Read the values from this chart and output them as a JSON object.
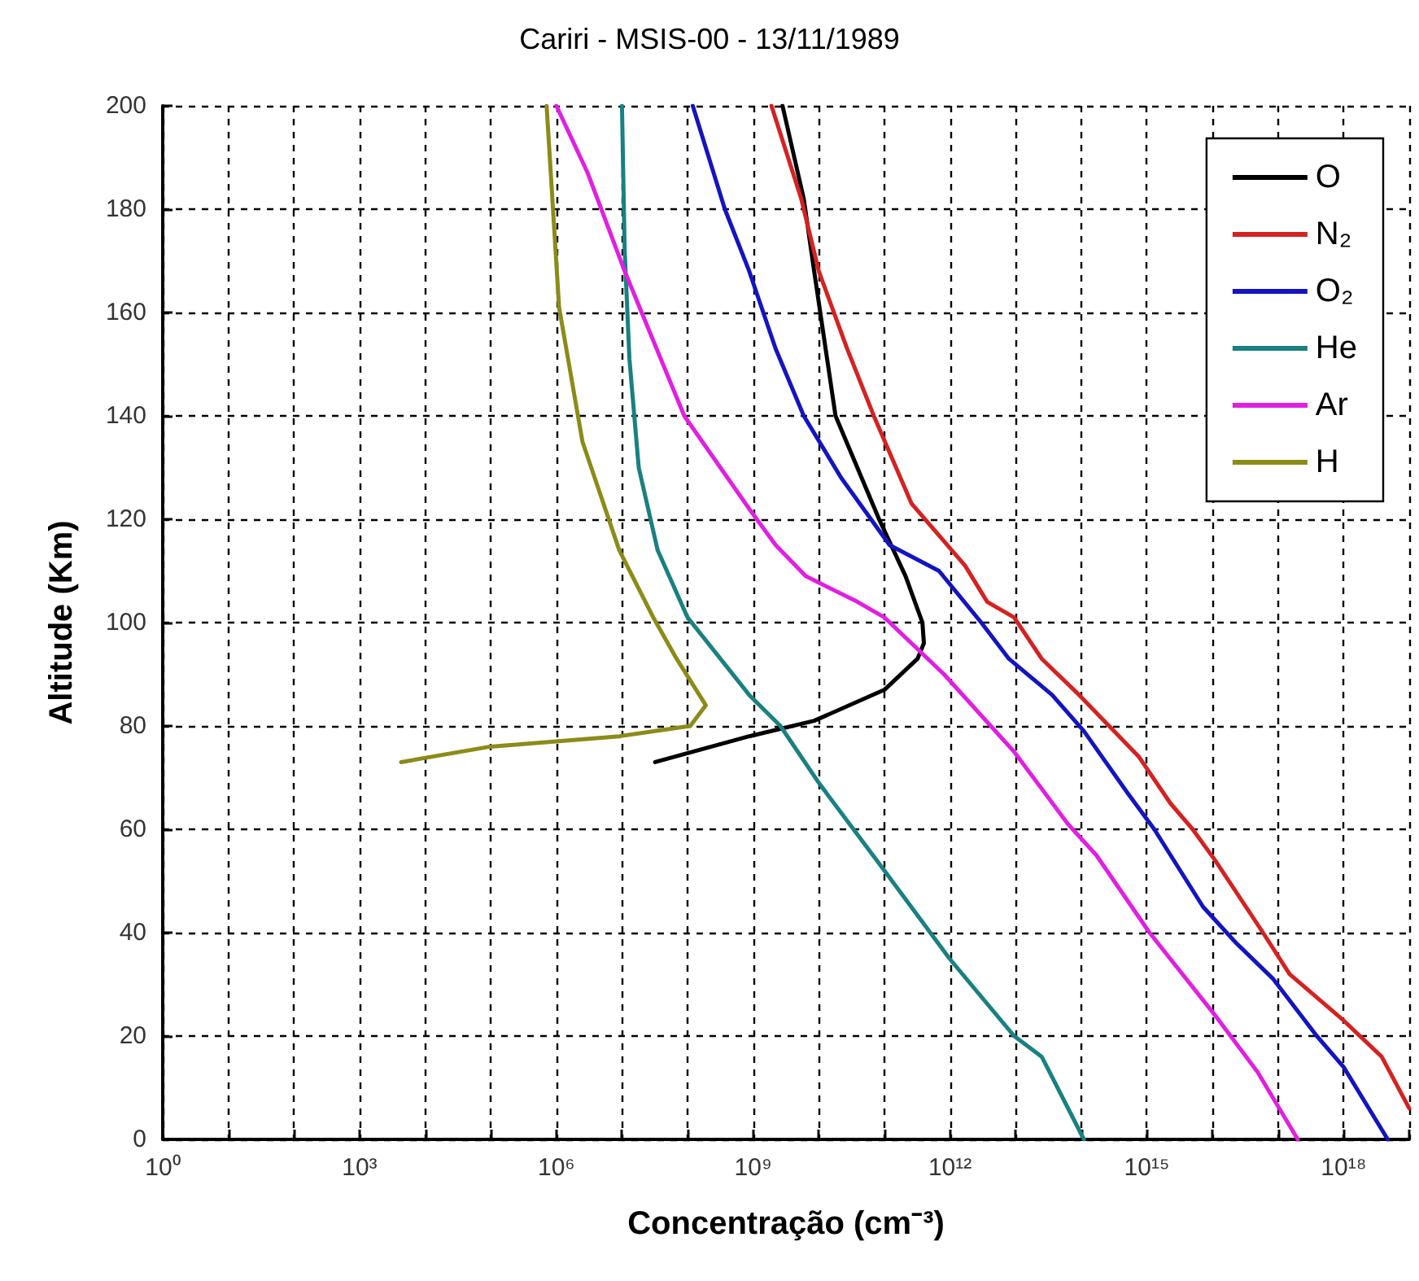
{
  "chart_data": {
    "type": "line",
    "title": "Cariri - MSIS-00 - 13/11/1989",
    "xlabel": "Concentração (cm⁻³)",
    "ylabel": "Altitude (Km)",
    "log": "x",
    "xlim": [
      1,
      1e+19
    ],
    "ylim": [
      0,
      200
    ],
    "xticks": [
      {
        "value": 1,
        "label": "10⁰"
      },
      {
        "value": 10,
        "label": null
      },
      {
        "value": 100,
        "label": null
      },
      {
        "value": 1000.0,
        "label": "10³"
      },
      {
        "value": 10000.0,
        "label": null
      },
      {
        "value": 100000.0,
        "label": null
      },
      {
        "value": 1000000.0,
        "label": "10⁶"
      },
      {
        "value": 10000000.0,
        "label": null
      },
      {
        "value": 100000000.0,
        "label": null
      },
      {
        "value": 1000000000.0,
        "label": "10⁹"
      },
      {
        "value": 10000000000.0,
        "label": null
      },
      {
        "value": 100000000000.0,
        "label": null
      },
      {
        "value": 1000000000000.0,
        "label": "10¹²"
      },
      {
        "value": 10000000000000.0,
        "label": null
      },
      {
        "value": 100000000000000.0,
        "label": null
      },
      {
        "value": 1000000000000000.0,
        "label": "10¹⁵"
      },
      {
        "value": 1e+16,
        "label": null
      },
      {
        "value": 1e+17,
        "label": null
      },
      {
        "value": 1e+18,
        "label": "10¹⁸"
      },
      {
        "value": 1e+19,
        "label": null
      }
    ],
    "yticks": [
      0,
      20,
      40,
      60,
      80,
      100,
      120,
      140,
      160,
      180,
      200
    ],
    "grid": true,
    "legend": "top right",
    "line_style": "solid",
    "series": [
      {
        "name": "O",
        "color": "#000000",
        "x": [
          32000000.0,
          870000000.0,
          8500000000.0,
          100000000000.0,
          320000000000.0,
          400000000000.0,
          380000000000.0,
          210000000000.0,
          83000000000.0,
          18000000000.0,
          8500000000.0,
          5900000000.0,
          2800000000.0
        ],
        "values": [
          73,
          78,
          81,
          87,
          93,
          96,
          100,
          109,
          120,
          140,
          168,
          182,
          200
        ]
      },
      {
        "name": "N₂",
        "color": "#d42222",
        "x": [
          1e+19,
          3.8e+18,
          1e+18,
          1.5e+17,
          5.9e+16,
          1.1e+16,
          5000000000000000.0,
          2300000000000000.0,
          760000000000000.0,
          93000000000000.0,
          25000000000000.0,
          9500000000000.0,
          3700000000000.0,
          1700000000000.0,
          260000000000.0,
          69000000000.0,
          27000000000.0,
          10000000000.0,
          5400000000.0,
          1900000000.0
        ],
        "values": [
          6,
          16,
          23,
          32,
          40,
          54,
          60,
          65,
          74,
          86,
          93,
          101,
          104,
          111,
          123,
          140,
          153,
          168,
          182,
          200
        ]
      },
      {
        "name": "O₂",
        "color": "#1414c0",
        "x": [
          4.7e+18,
          1e+18,
          3.9e+17,
          8.5e+16,
          2.3e+16,
          7200000000000000.0,
          1300000000000000.0,
          510000000000000.0,
          110000000000000.0,
          36000000000000.0,
          7900000000000.0,
          3000000000000.0,
          680000000000.0,
          120000000000.0,
          22000000000.0,
          5900000000.0,
          2200000000.0,
          870000000.0,
          370000000.0,
          120000000.0
        ],
        "values": [
          0,
          14,
          20,
          31,
          38,
          45,
          60,
          67,
          79,
          86,
          93,
          100,
          110,
          115,
          128,
          140,
          153,
          168,
          180,
          200
        ]
      },
      {
        "name": "He",
        "color": "#1a8080",
        "x": [
          110000000000000.0,
          25000000000000.0,
          9500000000000.0,
          980000000000.0,
          100000000000.0,
          10000000000.0,
          2600000000.0,
          870000000.0,
          100000000.0,
          35000000.0,
          18000000.0,
          13000000.0,
          11000000.0,
          10000000.0
        ],
        "values": [
          0,
          16,
          20,
          35,
          52,
          69,
          80,
          86,
          101,
          114,
          130,
          151,
          172,
          200
        ]
      },
      {
        "name": "Ar",
        "color": "#e020e0",
        "x": [
          2e+17,
          4.9e+16,
          1.1e+16,
          1100000000000000.0,
          170000000000000.0,
          63000000000000.0,
          9500000000000.0,
          810000000000.0,
          100000000000.0,
          39000000000.0,
          6300000000.0,
          2200000000.0,
          870000000.0,
          89000000.0,
          11000000.0,
          3000000.0,
          1000000.0
        ],
        "values": [
          0,
          13,
          24,
          40,
          55,
          61,
          75,
          90,
          101,
          104,
          109,
          115,
          122,
          140,
          168,
          187,
          200
        ]
      },
      {
        "name": "H",
        "color": "#8b8b1a",
        "x": [
          4300.0,
          98000.0,
          9100000.0,
          110000000.0,
          190000000.0,
          68000000.0,
          30000000.0,
          9100000.0,
          2500000.0,
          1100000.0,
          710000.0
        ],
        "values": [
          73,
          76,
          78,
          80,
          84,
          93,
          101,
          114,
          135,
          161,
          200
        ]
      }
    ]
  }
}
